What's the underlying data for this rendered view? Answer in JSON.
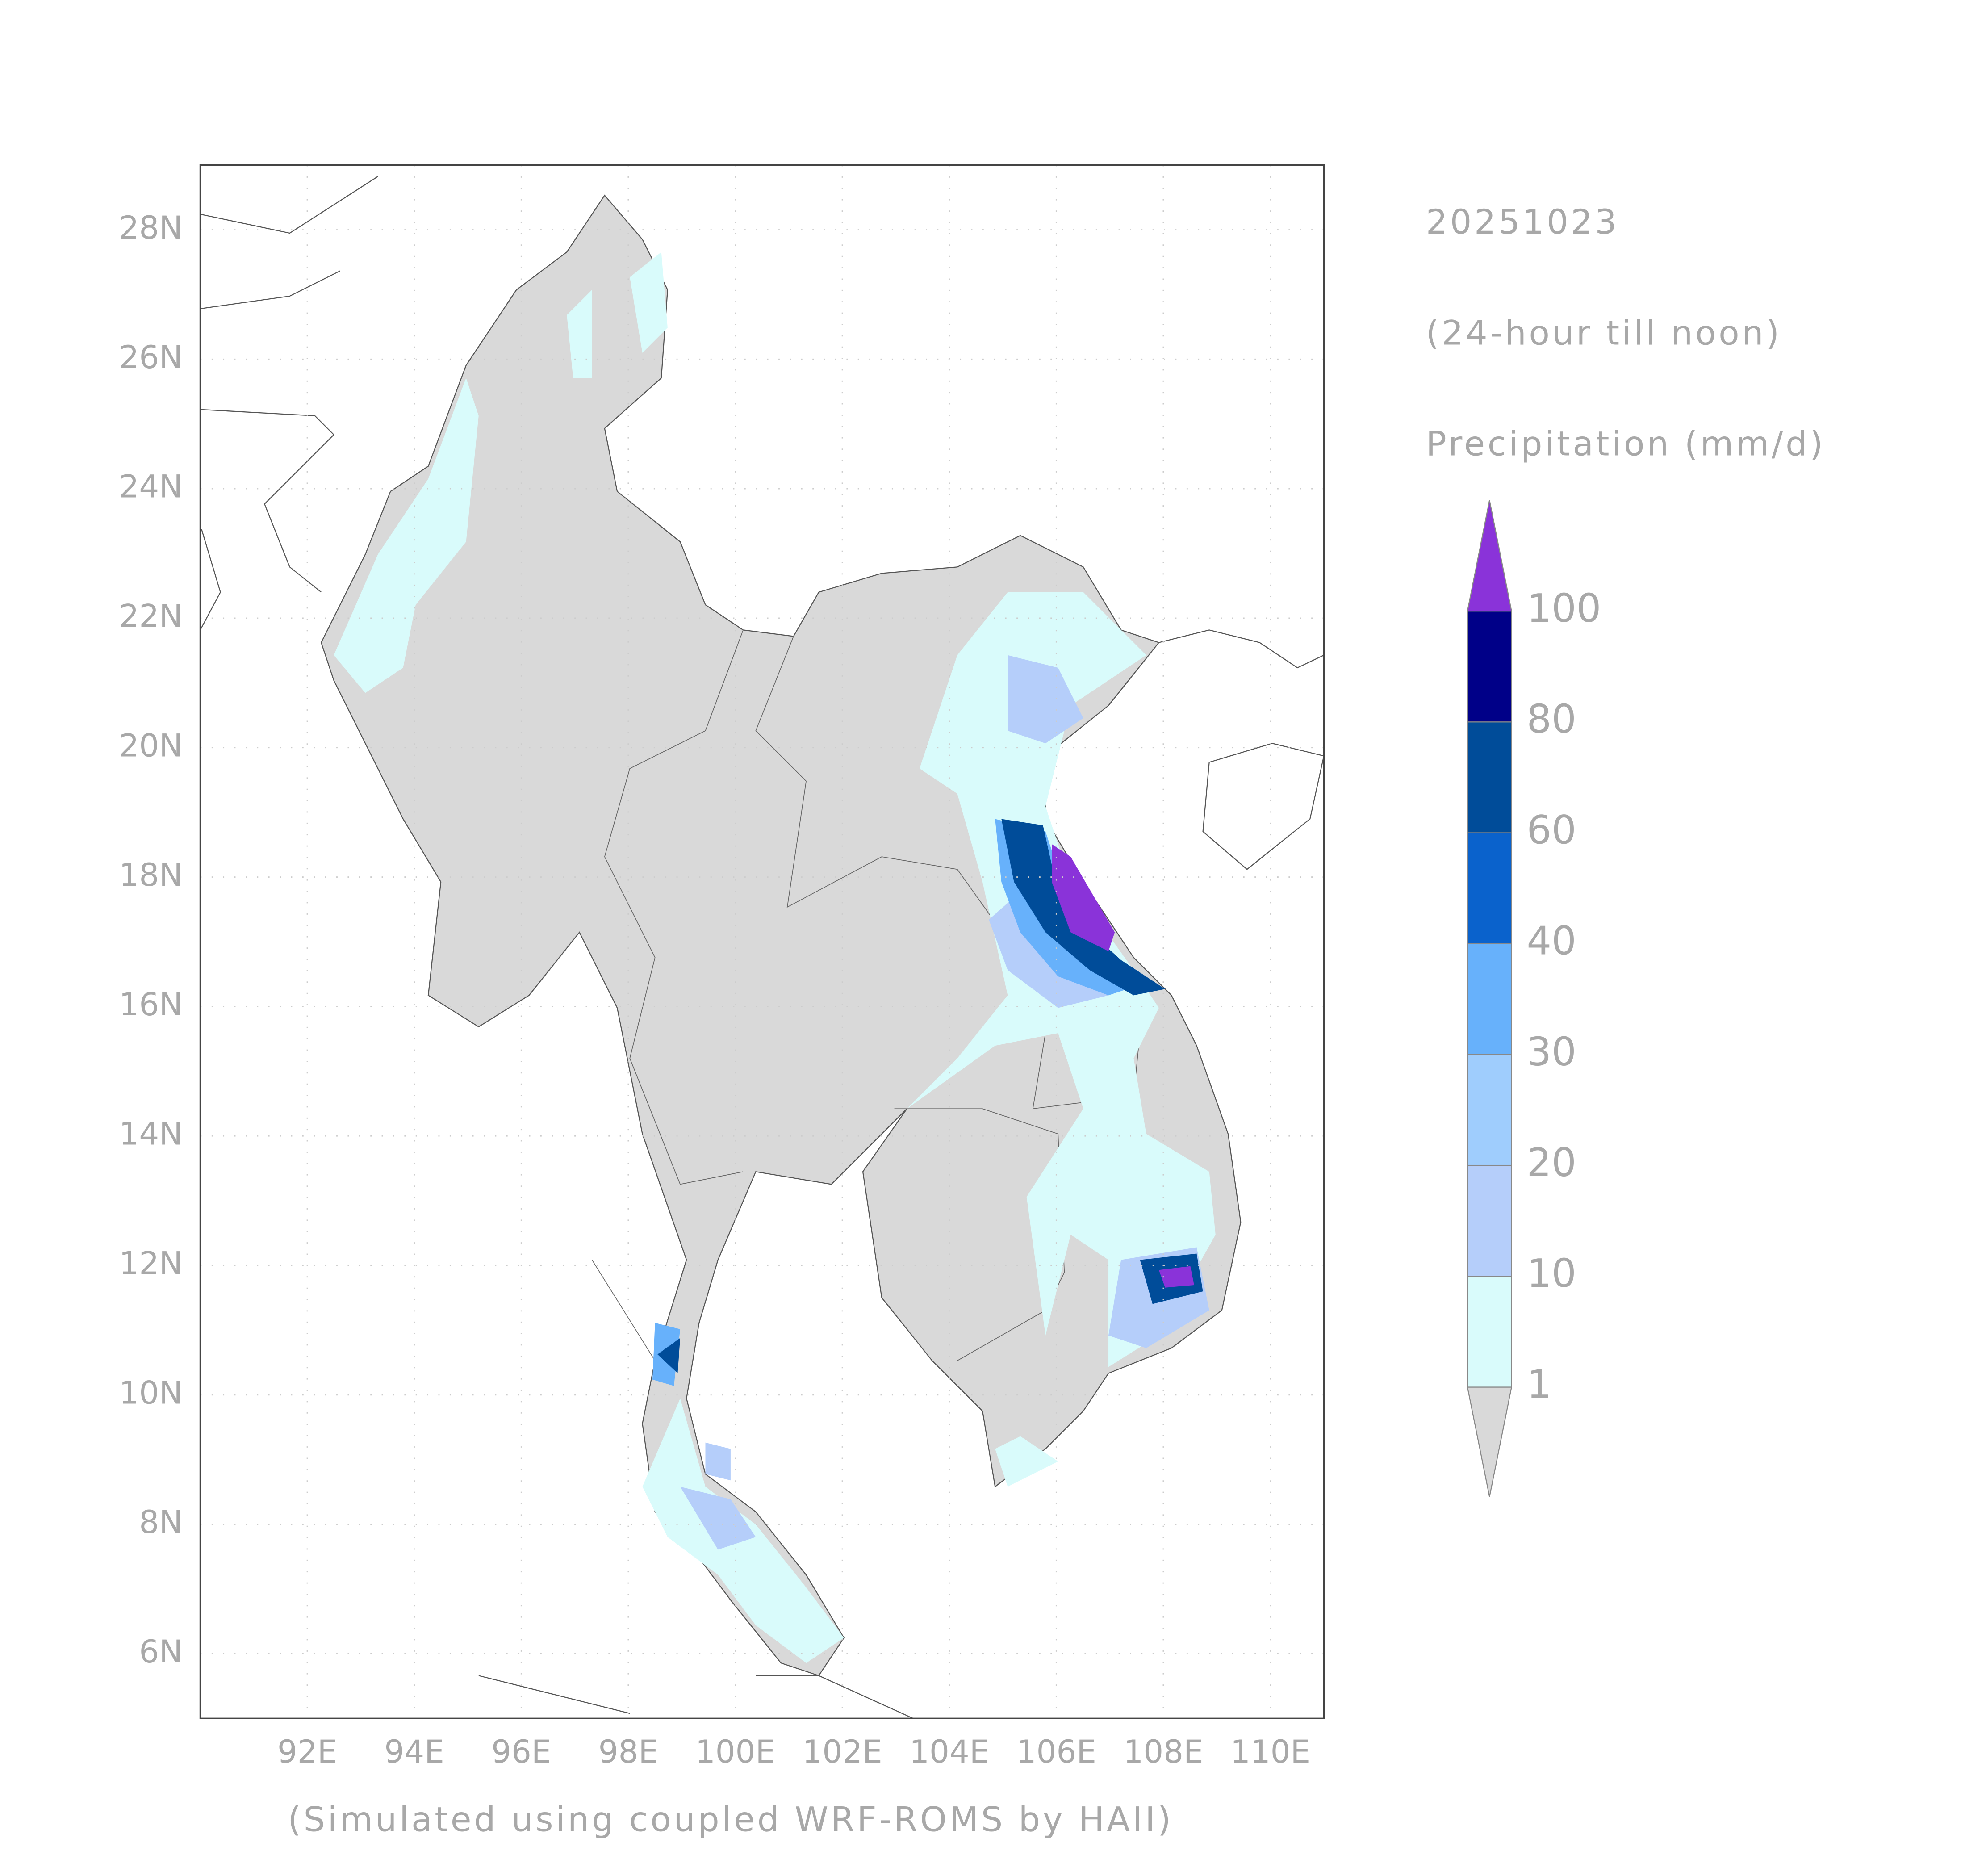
{
  "map": {
    "date": "20251023",
    "period": "(24-hour till noon)",
    "variable": "Precipitation (mm/d)",
    "footnote": "(Simulated using coupled WRF-ROMS by HAII)",
    "lonlim": [
      90,
      111
    ],
    "latlim": [
      5,
      29
    ],
    "lon_ticks": [
      {
        "value": 92,
        "label": "92E"
      },
      {
        "value": 94,
        "label": "94E"
      },
      {
        "value": 96,
        "label": "96E"
      },
      {
        "value": 98,
        "label": "98E"
      },
      {
        "value": 100,
        "label": "100E"
      },
      {
        "value": 102,
        "label": "102E"
      },
      {
        "value": 104,
        "label": "104E"
      },
      {
        "value": 106,
        "label": "106E"
      },
      {
        "value": 108,
        "label": "108E"
      },
      {
        "value": 110,
        "label": "110E"
      }
    ],
    "lat_ticks": [
      {
        "value": 6,
        "label": "6N"
      },
      {
        "value": 8,
        "label": "8N"
      },
      {
        "value": 10,
        "label": "10N"
      },
      {
        "value": 12,
        "label": "12N"
      },
      {
        "value": 14,
        "label": "14N"
      },
      {
        "value": 16,
        "label": "16N"
      },
      {
        "value": 18,
        "label": "18N"
      },
      {
        "value": 20,
        "label": "20N"
      },
      {
        "value": 22,
        "label": "22N"
      },
      {
        "value": 24,
        "label": "24N"
      },
      {
        "value": 26,
        "label": "26N"
      },
      {
        "value": 28,
        "label": "28N"
      }
    ],
    "grid": true,
    "legend": {
      "levels": [
        1,
        10,
        20,
        30,
        40,
        60,
        80,
        100
      ],
      "colors": [
        "#d9d9d9",
        "#d9fbfb",
        "#b5cefa",
        "#9fcdfd",
        "#67b1fb",
        "#0a62cc",
        "#004c99",
        "#000088",
        "#8a33d9"
      ]
    }
  }
}
